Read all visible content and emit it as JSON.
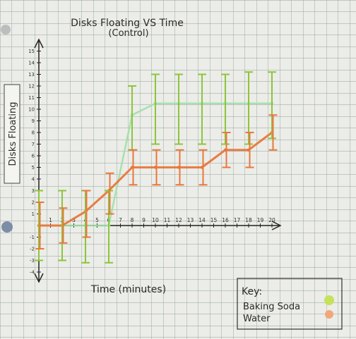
{
  "chart_data": {
    "type": "line",
    "title": "Disks Floating VS Time",
    "subtitle": "(Control)",
    "xlabel": "Time (minutes)",
    "ylabel": "Disks Floating",
    "x": [
      0,
      2,
      4,
      6,
      8,
      10,
      12,
      14,
      16,
      18,
      20
    ],
    "xlim": [
      0,
      20
    ],
    "ylim": [
      -4,
      15
    ],
    "x_tick_labels": [
      "1",
      "2",
      "3",
      "4",
      "5",
      "6",
      "7",
      "8",
      "9",
      "10",
      "11",
      "12",
      "13",
      "14",
      "15",
      "16",
      "17",
      "18",
      "19",
      "20"
    ],
    "y_tick_labels": [
      "-4",
      "-3",
      "-2",
      "-1",
      "1",
      "2",
      "3",
      "4",
      "5",
      "6",
      "7",
      "8",
      "9",
      "10",
      "11",
      "12",
      "13",
      "14",
      "15"
    ],
    "grid": true,
    "legend_placement": "bottom-right",
    "series": [
      {
        "name": "Baking Soda",
        "color": "#8cc63a",
        "line_color": "#9fe0a6",
        "values": [
          0,
          0,
          0,
          0,
          9.5,
          10.5,
          10.5,
          10.5,
          10.5,
          10.5,
          10.5
        ],
        "error_low": [
          -3,
          -3,
          -3.2,
          -3.2,
          6.5,
          7,
          7,
          7,
          7,
          7,
          7.5
        ],
        "error_high": [
          3,
          3,
          3,
          3,
          12,
          13,
          13,
          13,
          13,
          13.2,
          13.2
        ]
      },
      {
        "name": "Water",
        "color": "#e8773b",
        "line_color": "#e8773b",
        "values": [
          0,
          0,
          1.2,
          3,
          5,
          5,
          5,
          5,
          6.5,
          6.5,
          8
        ],
        "error_low": [
          -2,
          -1.5,
          -1,
          1,
          3.5,
          3.5,
          3.5,
          3.5,
          5,
          5,
          6.5
        ],
        "error_high": [
          2,
          1.5,
          3,
          4.5,
          6.5,
          6.5,
          6.5,
          6.5,
          8,
          8,
          9.5
        ]
      }
    ]
  },
  "key": {
    "title": "Key:",
    "items": [
      {
        "label": "Baking Soda",
        "color": "#c4e25a"
      },
      {
        "label": "Water",
        "color": "#f2a77a"
      }
    ]
  }
}
